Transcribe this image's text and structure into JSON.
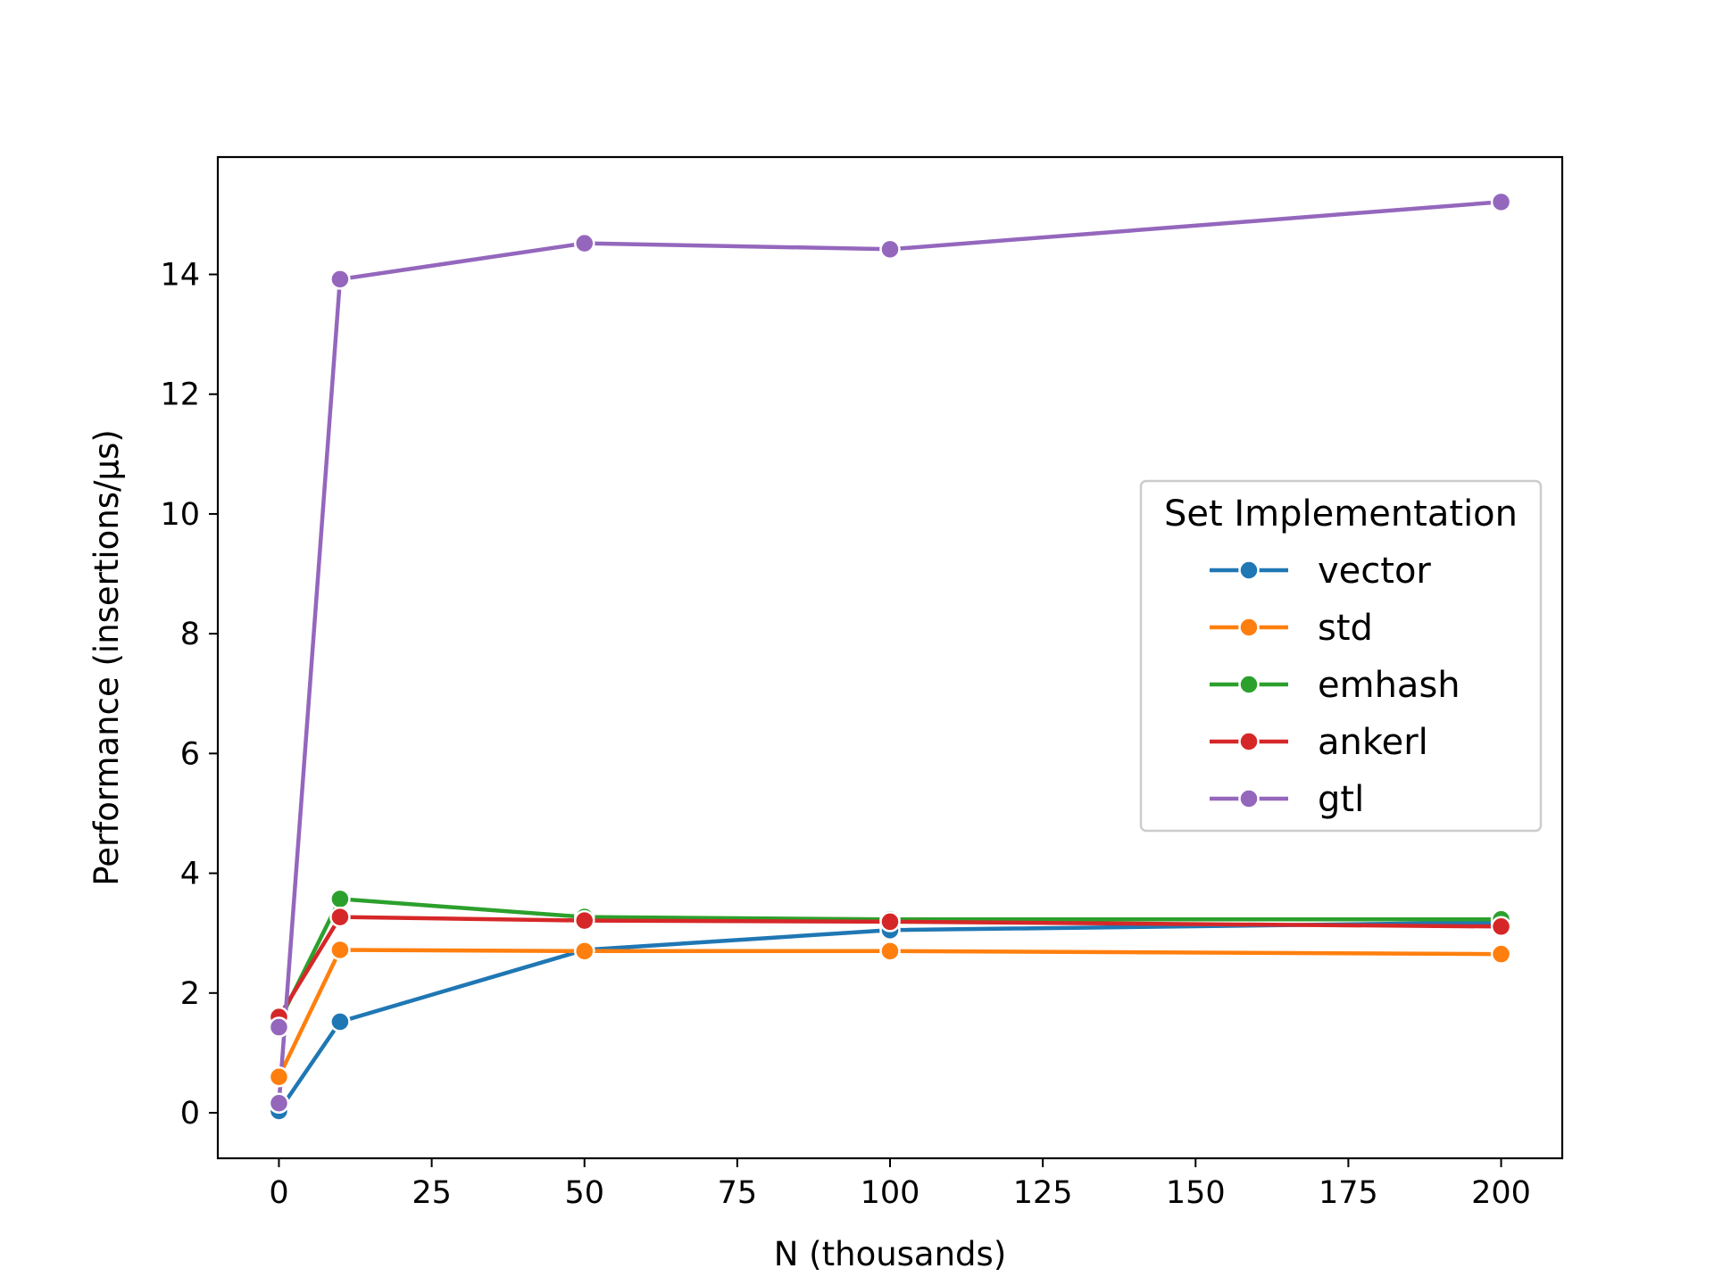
{
  "chart_data": {
    "type": "line",
    "title": "",
    "xlabel": "N (thousands)",
    "ylabel": "Performance (insertions/µs)",
    "xlim": [
      -10,
      210
    ],
    "ylim": [
      -0.76,
      15.96
    ],
    "x_ticks": [
      0,
      25,
      50,
      75,
      100,
      125,
      150,
      175,
      200
    ],
    "y_ticks": [
      0,
      2,
      4,
      6,
      8,
      10,
      12,
      14
    ],
    "grid": false,
    "legend": {
      "title": "Set Implementation",
      "placement": "center-right"
    },
    "x": [
      0,
      10,
      50,
      100,
      200
    ],
    "series": [
      {
        "name": "vector",
        "color": "#1f77b4",
        "values": [
          0.03,
          1.52,
          2.72,
          3.05,
          3.18
        ]
      },
      {
        "name": "std",
        "color": "#ff7f0e",
        "values": [
          0.6,
          2.72,
          2.7,
          2.7,
          2.65
        ]
      },
      {
        "name": "emhash",
        "color": "#2ca02c",
        "values": [
          1.52,
          3.57,
          3.27,
          3.23,
          3.23
        ]
      },
      {
        "name": "ankerl",
        "color": "#d62728",
        "values": [
          1.6,
          3.27,
          3.21,
          3.19,
          3.11
        ]
      },
      {
        "name": "gtl",
        "color": "#9467bd",
        "values": [
          0.16,
          13.92,
          14.52,
          14.42,
          15.21
        ]
      }
    ],
    "extra_points": [
      {
        "series": "gtl",
        "x": 0,
        "y": 1.43
      }
    ]
  }
}
